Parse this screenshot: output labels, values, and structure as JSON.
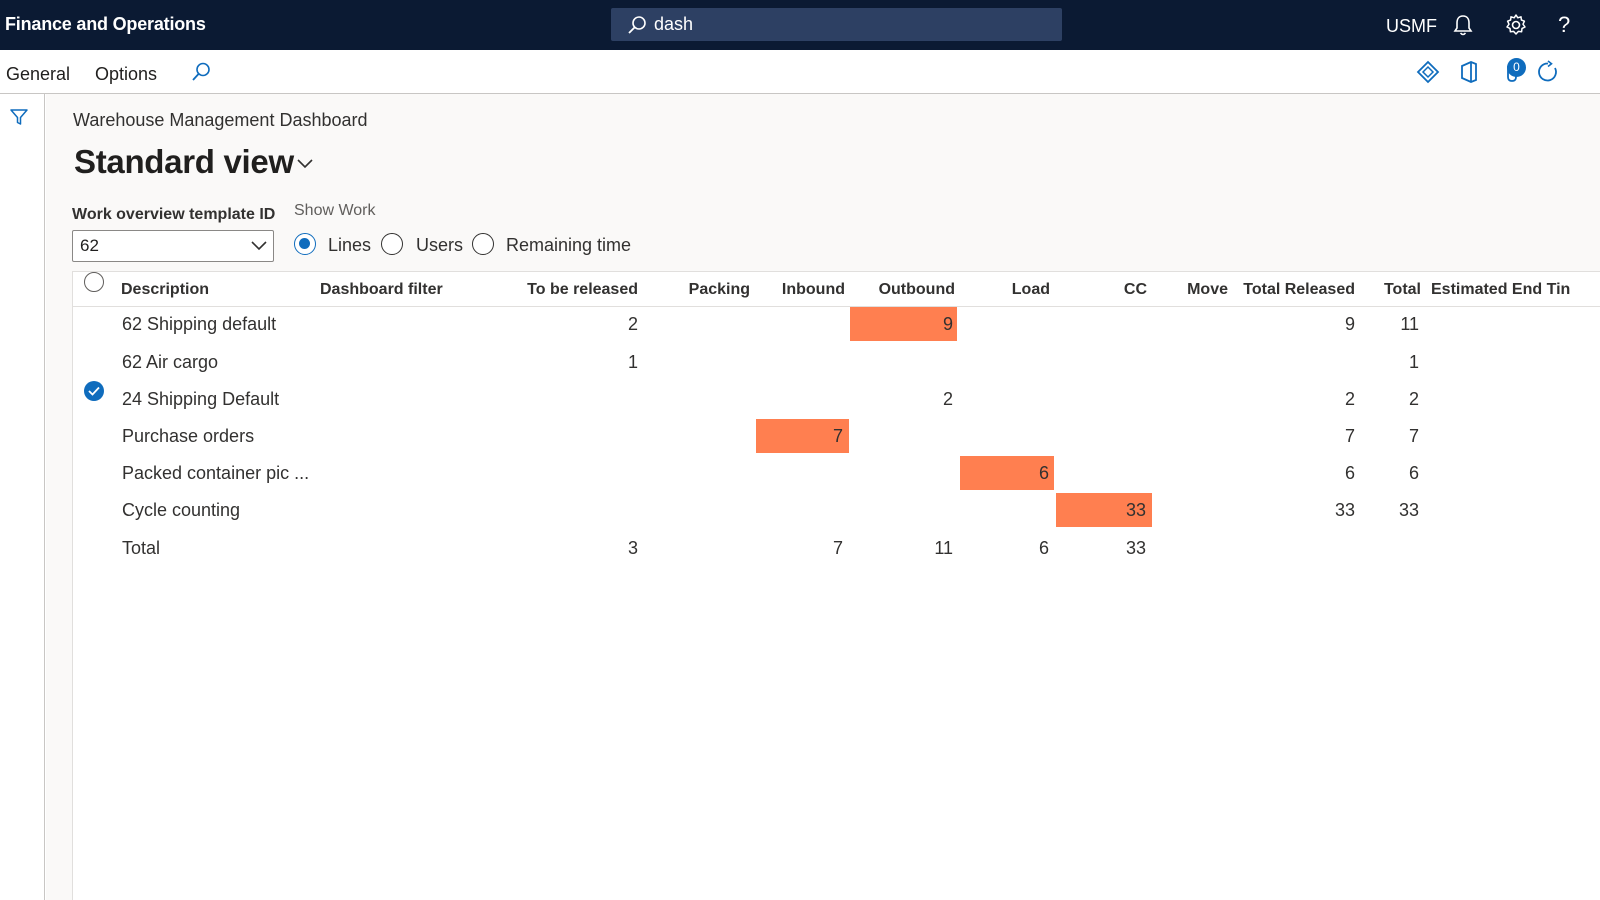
{
  "topbar": {
    "app_title": "Finance and Operations",
    "search_value": "dash",
    "company": "USMF",
    "help_glyph": "?",
    "icons": [
      "search-icon",
      "bell-icon",
      "gear-icon",
      "help-icon"
    ]
  },
  "actionbar": {
    "tabs": [
      "General",
      "Options"
    ],
    "attachments_count": "0",
    "icons": [
      "search-icon",
      "diamond-icon",
      "office-icon",
      "attachment-icon",
      "refresh-icon"
    ]
  },
  "page": {
    "breadcrumb": "Warehouse Management Dashboard",
    "title": "Standard view",
    "template_field_label": "Work overview template ID",
    "template_field_value": "62",
    "show_work_label": "Show Work",
    "show_work_options": [
      "Lines",
      "Users",
      "Remaining time"
    ],
    "show_work_selected": "Lines"
  },
  "grid": {
    "columns": [
      "Description",
      "Dashboard filter",
      "To be released",
      "Packing",
      "Inbound",
      "Outbound",
      "Load",
      "CC",
      "Move",
      "Total Released",
      "Total",
      "Estimated End Tin"
    ],
    "rows": [
      {
        "description": "62 Shipping default",
        "to_be_released": "2",
        "inbound": "",
        "outbound": "9",
        "load": "",
        "cc": "",
        "total_released": "9",
        "total": "11"
      },
      {
        "description": "62 Air cargo",
        "to_be_released": "1",
        "inbound": "",
        "outbound": "",
        "load": "",
        "cc": "",
        "total_released": "",
        "total": "1"
      },
      {
        "description": "24 Shipping Default",
        "to_be_released": "",
        "inbound": "",
        "outbound": "2",
        "load": "",
        "cc": "",
        "total_released": "2",
        "total": "2",
        "selected": true
      },
      {
        "description": "Purchase orders",
        "to_be_released": "",
        "inbound": "7",
        "outbound": "",
        "load": "",
        "cc": "",
        "total_released": "7",
        "total": "7"
      },
      {
        "description": "Packed container pic ...",
        "to_be_released": "",
        "inbound": "",
        "outbound": "",
        "load": "6",
        "cc": "",
        "total_released": "6",
        "total": "6"
      },
      {
        "description": "Cycle counting",
        "to_be_released": "",
        "inbound": "",
        "outbound": "",
        "load": "",
        "cc": "33",
        "total_released": "33",
        "total": "33"
      }
    ],
    "totals": {
      "description": "Total",
      "to_be_released": "3",
      "inbound": "7",
      "outbound": "11",
      "load": "6",
      "cc": "33"
    },
    "highlight_color": "#ff7f50"
  },
  "colors": {
    "topbar_bg": "#0b1a33",
    "search_bg": "#2d4063",
    "accent": "#0f6cbd"
  }
}
